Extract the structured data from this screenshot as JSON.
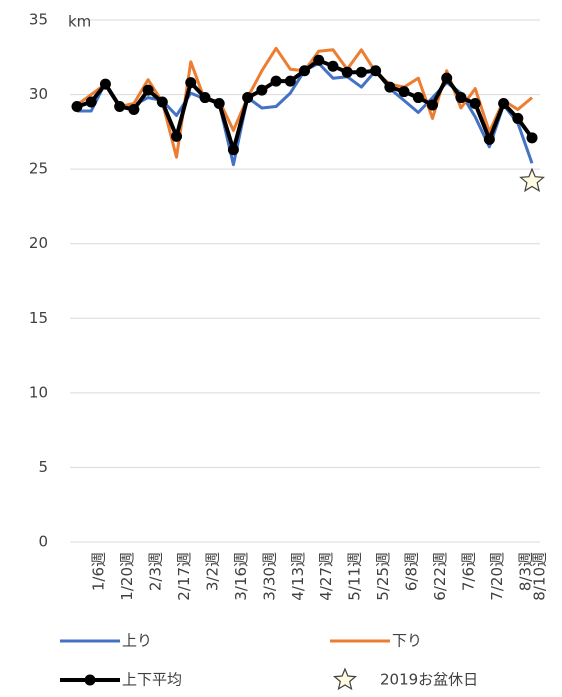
{
  "chart_data": {
    "type": "line",
    "annotations": [
      "km"
    ],
    "categories": [
      null,
      "1/6週",
      null,
      "1/20週",
      null,
      "2/3週",
      null,
      "2/17週",
      null,
      "3/2週",
      null,
      "3/16週",
      null,
      "3/30週",
      null,
      "4/13週",
      null,
      "4/27週",
      null,
      "5/11週",
      null,
      "5/25週",
      null,
      "6/8週",
      null,
      "6/22週",
      null,
      "7/6週",
      null,
      "7/20週",
      null,
      "8/3週",
      "8/10週"
    ],
    "series": [
      {
        "name": "上り",
        "color": "#4472c4",
        "values": [
          28.9,
          28.9,
          30.8,
          29.2,
          29.3,
          29.8,
          29.6,
          28.6,
          30.1,
          29.7,
          29.4,
          25.3,
          29.8,
          29.1,
          29.2,
          30.1,
          31.6,
          32.1,
          31.1,
          31.2,
          30.5,
          31.6,
          30.4,
          29.6,
          28.8,
          29.8,
          30.8,
          30.1,
          28.5,
          26.5,
          29.3,
          28.1,
          25.4
        ]
      },
      {
        "name": "下り",
        "color": "#ed7d31",
        "values": [
          29.3,
          30.0,
          30.7,
          29.2,
          29.4,
          31.0,
          29.5,
          25.8,
          32.2,
          29.6,
          29.6,
          27.6,
          29.8,
          31.6,
          33.1,
          31.7,
          31.6,
          32.9,
          33.0,
          31.7,
          33.0,
          31.5,
          30.7,
          30.5,
          31.1,
          28.4,
          31.6,
          29.1,
          30.4,
          27.5,
          29.6,
          29.0,
          29.8
        ]
      },
      {
        "name": "上下平均",
        "color": "#000000",
        "marker": "circle",
        "values": [
          29.2,
          29.5,
          30.7,
          29.2,
          29.0,
          30.3,
          29.5,
          27.2,
          30.8,
          29.8,
          29.4,
          26.3,
          29.8,
          30.3,
          30.9,
          30.9,
          31.6,
          32.3,
          31.9,
          31.5,
          31.5,
          31.6,
          30.5,
          30.2,
          29.8,
          29.3,
          31.1,
          29.8,
          29.4,
          27.0,
          29.4,
          28.4,
          27.1
        ]
      },
      {
        "name": "2019お盆休日",
        "color": "#fffbe0",
        "marker": "star",
        "values": [
          null,
          null,
          null,
          null,
          null,
          null,
          null,
          null,
          null,
          null,
          null,
          null,
          null,
          null,
          null,
          null,
          null,
          null,
          null,
          null,
          null,
          null,
          null,
          null,
          null,
          null,
          null,
          null,
          null,
          null,
          null,
          null,
          24.2
        ]
      }
    ],
    "ylim": [
      0,
      35
    ],
    "yticks": [
      0,
      5,
      10,
      15,
      20,
      25,
      30,
      35
    ],
    "grid": true
  }
}
